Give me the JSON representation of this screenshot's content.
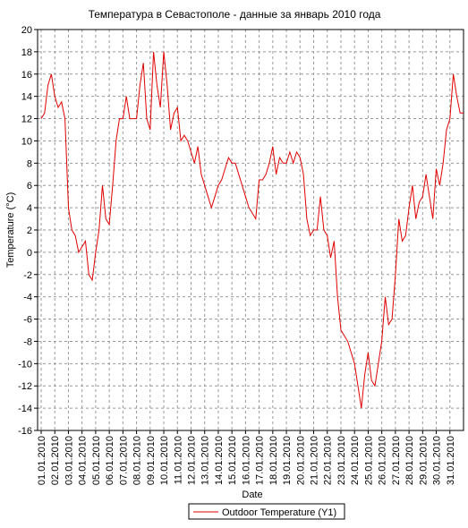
{
  "chart_data": {
    "type": "line",
    "title": "Температура в Севастополе - данные за январь 2010 года",
    "x_label": "Date",
    "y_label": "Temperature (°C)",
    "categories": [
      "01.01.2010",
      null,
      null,
      null,
      "02.01.2010",
      null,
      null,
      null,
      "03.01.2010",
      null,
      null,
      null,
      "04.01.2010",
      null,
      null,
      null,
      "05.01.2010",
      null,
      null,
      null,
      "06.01.2010",
      null,
      null,
      null,
      "07.01.2010",
      null,
      null,
      null,
      "08.01.2010",
      null,
      null,
      null,
      "09.01.2010",
      null,
      null,
      null,
      "10.01.2010",
      null,
      null,
      null,
      "11.01.2010",
      null,
      null,
      null,
      "12.01.2010",
      null,
      null,
      null,
      "13.01.2010",
      null,
      null,
      null,
      "14.01.2010",
      null,
      null,
      null,
      "15.01.2010",
      null,
      null,
      null,
      "16.01.2010",
      null,
      null,
      null,
      "17.01.2010",
      null,
      null,
      null,
      "18.01.2010",
      null,
      null,
      null,
      "19.01.2010",
      null,
      null,
      null,
      "20.01.2010",
      null,
      null,
      null,
      "21.01.2010",
      null,
      null,
      null,
      "22.01.2010",
      null,
      null,
      null,
      "23.01.2010",
      null,
      null,
      null,
      "24.01.2010",
      null,
      null,
      null,
      "25.01.2010",
      null,
      null,
      null,
      "26.01.2010",
      null,
      null,
      null,
      "27.01.2010",
      null,
      null,
      null,
      "28.01.2010",
      null,
      null,
      null,
      "29.01.2010",
      null,
      null,
      null,
      "30.01.2010",
      null,
      null,
      null,
      "31.01.2010",
      null,
      null,
      null,
      null
    ],
    "series": [
      {
        "name": "Outdoor Temperature (Y1)",
        "color": "#e00000",
        "values": [
          12,
          12.5,
          15,
          16,
          14,
          13,
          13.5,
          12,
          4,
          2,
          1.5,
          0,
          0.5,
          1,
          -2,
          -2.5,
          0,
          2,
          6,
          3,
          2.5,
          6,
          10,
          12,
          12,
          14,
          12,
          12,
          12,
          15,
          17,
          12,
          11,
          18,
          15,
          13,
          18,
          15,
          11,
          12.5,
          13,
          10,
          10.5,
          10,
          9,
          8,
          9.5,
          7,
          6,
          5,
          4,
          5,
          6,
          6.5,
          7.5,
          8.5,
          8,
          8,
          7,
          6,
          5,
          4,
          3.5,
          3,
          6.5,
          6.5,
          7,
          8,
          9.5,
          7,
          8.5,
          8,
          8,
          9,
          8,
          9,
          8.5,
          7,
          3,
          1.5,
          2,
          2,
          5,
          2,
          1.5,
          -0.5,
          1,
          -4,
          -7,
          -7.5,
          -8,
          -9,
          -10,
          -12,
          -14,
          -11,
          -9,
          -11.5,
          -12,
          -10,
          -8,
          -4,
          -6.5,
          -6,
          -2,
          3,
          1,
          1.5,
          4,
          6,
          3,
          4.5,
          5,
          7,
          5,
          3,
          7.5,
          6,
          8,
          11,
          12,
          16,
          14,
          12.5,
          12.5
        ]
      }
    ],
    "ylim": [
      -16,
      20
    ],
    "yticks": [
      -16,
      -14,
      -12,
      -10,
      -8,
      -6,
      -4,
      -2,
      0,
      2,
      4,
      6,
      8,
      10,
      12,
      14,
      16,
      18,
      20
    ],
    "grid": true,
    "legend": "bottom"
  }
}
